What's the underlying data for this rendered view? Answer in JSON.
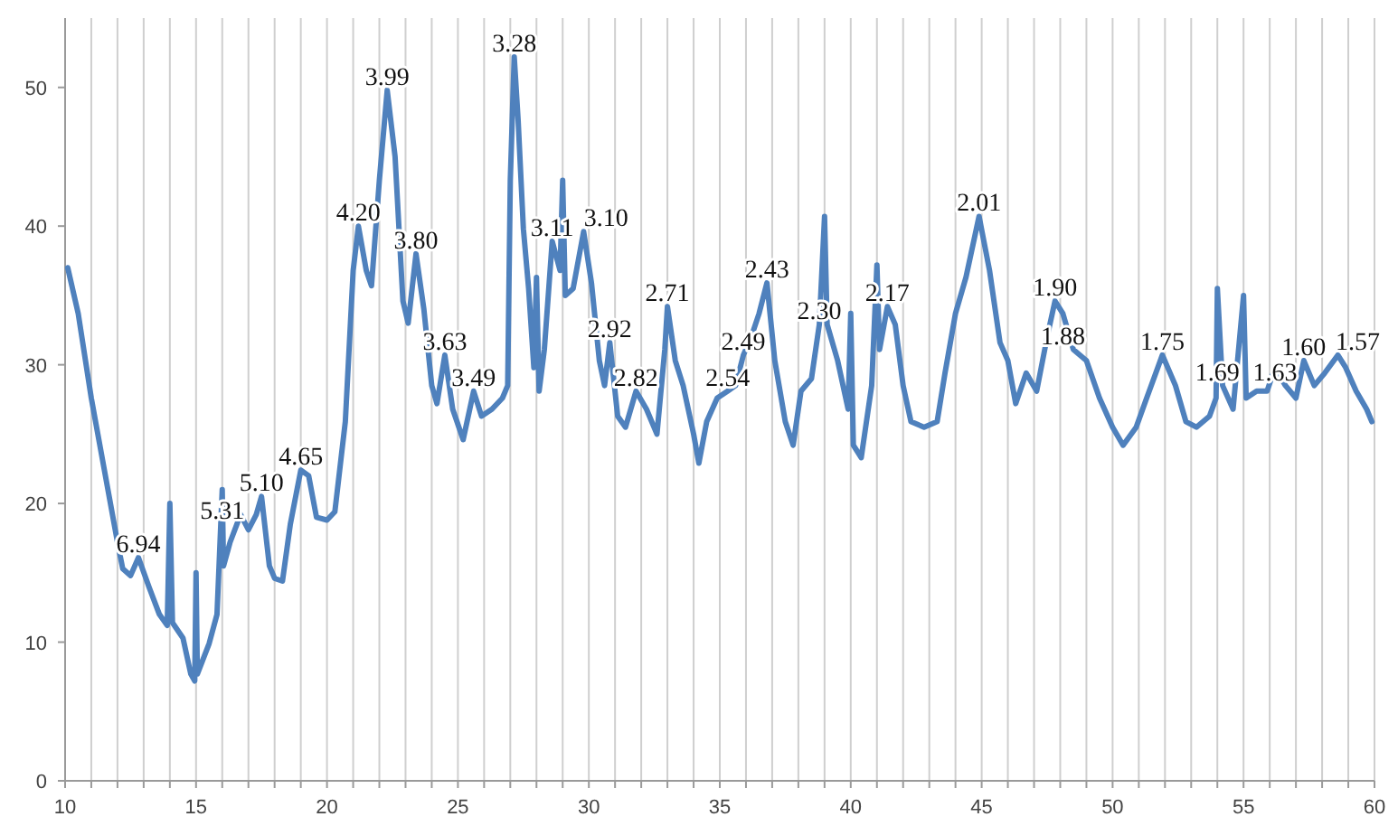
{
  "chart_data": {
    "type": "line",
    "xlim": [
      10,
      60
    ],
    "ylim": [
      0,
      55
    ],
    "xticks": [
      10,
      {
        "value": 11,
        "label": null
      },
      {
        "value": 12,
        "label": null
      },
      {
        "value": 13,
        "label": null
      },
      {
        "value": 14,
        "label": null
      },
      15,
      {
        "value": 16,
        "label": null
      },
      {
        "value": 17,
        "label": null
      },
      {
        "value": 18,
        "label": null
      },
      {
        "value": 19,
        "label": null
      },
      20,
      {
        "value": 21,
        "label": null
      },
      {
        "value": 22,
        "label": null
      },
      {
        "value": 23,
        "label": null
      },
      {
        "value": 24,
        "label": null
      },
      25,
      {
        "value": 26,
        "label": null
      },
      {
        "value": 27,
        "label": null
      },
      {
        "value": 28,
        "label": null
      },
      {
        "value": 29,
        "label": null
      },
      30,
      {
        "value": 31,
        "label": null
      },
      {
        "value": 32,
        "label": null
      },
      {
        "value": 33,
        "label": null
      },
      {
        "value": 34,
        "label": null
      },
      35,
      {
        "value": 36,
        "label": null
      },
      {
        "value": 37,
        "label": null
      },
      {
        "value": 38,
        "label": null
      },
      {
        "value": 39,
        "label": null
      },
      40,
      {
        "value": 41,
        "label": null
      },
      {
        "value": 42,
        "label": null
      },
      {
        "value": 43,
        "label": null
      },
      {
        "value": 44,
        "label": null
      },
      45,
      {
        "value": 46,
        "label": null
      },
      {
        "value": 47,
        "label": null
      },
      {
        "value": 48,
        "label": null
      },
      {
        "value": 49,
        "label": null
      },
      50,
      {
        "value": 51,
        "label": null
      },
      {
        "value": 52,
        "label": null
      },
      {
        "value": 53,
        "label": null
      },
      {
        "value": 54,
        "label": null
      },
      55,
      {
        "value": 56,
        "label": null
      },
      {
        "value": 57,
        "label": null
      },
      {
        "value": 58,
        "label": null
      },
      {
        "value": 59,
        "label": null
      },
      60
    ],
    "yticks": [
      0,
      10,
      20,
      30,
      40,
      50
    ],
    "grid": "x",
    "line_style": "solid",
    "marker": "none",
    "series": [
      {
        "color": "#4f81bd",
        "x": [
          10.1,
          10.5,
          11,
          11.5,
          12,
          12.2,
          12.5,
          12.8,
          13.2,
          13.6,
          13.9,
          14,
          14.1,
          14.5,
          14.8,
          14.95,
          15,
          15.05,
          15.5,
          15.8,
          16,
          16.05,
          16.3,
          16.7,
          17,
          17.3,
          17.5,
          17.8,
          18,
          18.3,
          18.6,
          19,
          19.3,
          19.6,
          20,
          20.3,
          20.7,
          21,
          21.2,
          21.5,
          21.7,
          22,
          22.3,
          22.6,
          22.9,
          23.1,
          23.4,
          23.7,
          24,
          24.2,
          24.5,
          24.8,
          25.2,
          25.6,
          25.9,
          26.3,
          26.7,
          26.9,
          27,
          27.15,
          27.3,
          27.5,
          27.7,
          27.9,
          28,
          28.1,
          28.3,
          28.6,
          28.9,
          29,
          29.1,
          29.4,
          29.8,
          30.1,
          30.4,
          30.6,
          30.8,
          31.1,
          31.4,
          31.8,
          32.2,
          32.6,
          32.9,
          33,
          33.3,
          33.6,
          34,
          34.2,
          34.5,
          34.9,
          35.3,
          35.6,
          35.9,
          36.2,
          36.5,
          36.8,
          37.1,
          37.5,
          37.8,
          38.1,
          38.5,
          38.8,
          39,
          39.1,
          39.5,
          39.9,
          40,
          40.1,
          40.4,
          40.8,
          41,
          41.1,
          41.4,
          41.7,
          42,
          42.3,
          42.8,
          43.3,
          43.6,
          44,
          44.4,
          44.9,
          45.3,
          45.7,
          46,
          46.3,
          46.7,
          47.1,
          47.5,
          47.8,
          48.1,
          48.5,
          49,
          49.5,
          50,
          50.4,
          50.9,
          51.3,
          51.9,
          52.4,
          52.8,
          53.2,
          53.7,
          53.95,
          54,
          54.2,
          54.6,
          55,
          55.1,
          55.5,
          55.9,
          56.2,
          56.6,
          57,
          57.3,
          57.7,
          58.1,
          58.6,
          58.9,
          59.3,
          59.7,
          59.9
        ],
        "values": [
          37,
          33.7,
          27.6,
          22.4,
          17.2,
          15.3,
          14.8,
          16.1,
          14,
          12,
          11.2,
          20,
          11.4,
          10.3,
          7.7,
          7.2,
          15,
          7.7,
          9.9,
          12,
          21,
          15.5,
          17.2,
          19.2,
          18.1,
          19.2,
          20.5,
          15.5,
          14.6,
          14.4,
          18.5,
          22.4,
          22,
          19,
          18.8,
          19.4,
          25.9,
          36.8,
          40,
          36.8,
          35.7,
          43.3,
          49.8,
          45,
          34.6,
          33,
          38,
          34,
          28.5,
          27.2,
          30.7,
          26.8,
          24.6,
          28.1,
          26.3,
          26.8,
          27.6,
          28.5,
          43.3,
          52.2,
          47.6,
          39.8,
          35.5,
          29.8,
          36.3,
          28.1,
          31.1,
          38.9,
          36.8,
          43.3,
          35,
          35.5,
          39.6,
          35.9,
          30.3,
          28.5,
          31.6,
          26.3,
          25.5,
          28.1,
          26.8,
          25,
          31.1,
          34.2,
          30.3,
          28.5,
          25,
          22.9,
          25.9,
          27.6,
          28.1,
          28.5,
          30.7,
          32,
          33.7,
          35.9,
          30.3,
          25.9,
          24.2,
          28.1,
          29,
          32.9,
          40.7,
          32.9,
          30.3,
          26.8,
          33.7,
          24.2,
          23.3,
          28.5,
          37.2,
          31.1,
          34.2,
          32.9,
          28.5,
          25.9,
          25.5,
          25.9,
          29.4,
          33.7,
          36.3,
          40.7,
          36.8,
          31.6,
          30.3,
          27.2,
          29.4,
          28.1,
          32,
          34.6,
          33.7,
          31.1,
          30.3,
          27.6,
          25.5,
          24.2,
          25.5,
          27.6,
          30.7,
          28.5,
          25.9,
          25.5,
          26.3,
          27.6,
          35.5,
          28.5,
          26.8,
          35,
          27.6,
          28.1,
          28.1,
          29.8,
          28.5,
          27.6,
          30.3,
          28.5,
          29.4,
          30.7,
          29.8,
          28.1,
          26.8,
          25.9
        ]
      }
    ],
    "annotations": [
      {
        "text": "6.94",
        "x": 12.8,
        "y": 16.1
      },
      {
        "text": "5.31",
        "x": 16,
        "y": 18.5
      },
      {
        "text": "5.10",
        "x": 17.5,
        "y": 20.5
      },
      {
        "text": "4.65",
        "x": 19,
        "y": 22.4
      },
      {
        "text": "4.20",
        "x": 21.2,
        "y": 40
      },
      {
        "text": "3.99",
        "x": 22.3,
        "y": 49.8
      },
      {
        "text": "3.80",
        "x": 23.4,
        "y": 38
      },
      {
        "text": "3.63",
        "x": 24.5,
        "y": 30.7
      },
      {
        "text": "3.49",
        "x": 25.6,
        "y": 28.1
      },
      {
        "text": "3.28",
        "x": 27.15,
        "y": 52.2
      },
      {
        "text": "3.11",
        "x": 28.6,
        "y": 38.9
      },
      {
        "text": "3.10",
        "x": 29.8,
        "y": 39.6
      },
      {
        "text": "2.92",
        "x": 30.8,
        "y": 31.6
      },
      {
        "text": "2.82",
        "x": 31.8,
        "y": 28.1
      },
      {
        "text": "2.71",
        "x": 33,
        "y": 34.2
      },
      {
        "text": "2.54",
        "x": 35.3,
        "y": 28.1
      },
      {
        "text": "2.49",
        "x": 35.9,
        "y": 30.7
      },
      {
        "text": "2.43",
        "x": 36.8,
        "y": 35.9
      },
      {
        "text": "2.30",
        "x": 38.8,
        "y": 32.9
      },
      {
        "text": "2.17",
        "x": 41.4,
        "y": 34.2
      },
      {
        "text": "2.01",
        "x": 44.9,
        "y": 40.7
      },
      {
        "text": "1.90",
        "x": 47.8,
        "y": 34.6
      },
      {
        "text": "1.88",
        "x": 48.1,
        "y": 31.1
      },
      {
        "text": "1.75",
        "x": 51.9,
        "y": 30.7
      },
      {
        "text": "1.69",
        "x": 54,
        "y": 28.5
      },
      {
        "text": "1.63",
        "x": 56.2,
        "y": 28.5
      },
      {
        "text": "1.60",
        "x": 57.3,
        "y": 30.3
      },
      {
        "text": "1.57",
        "x": 58.6,
        "y": 30.7
      }
    ]
  }
}
